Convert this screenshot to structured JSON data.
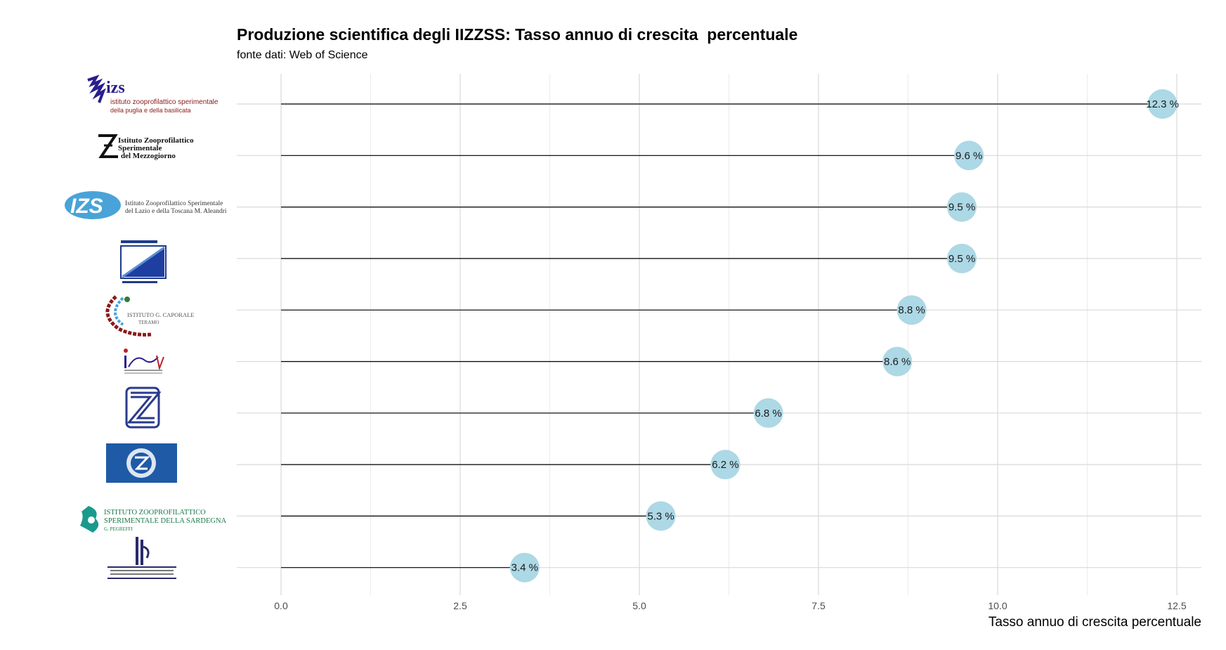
{
  "chart_data": {
    "type": "bar",
    "style": "lollipop-horizontal",
    "title": "Produzione scientifica degli IIZZSS: Tasso annuo di crescita  percentuale",
    "subtitle": "fonte dati: Web of Science",
    "xlabel": "Tasso annuo di crescita  percentuale",
    "ylabel": "",
    "xlim": [
      0,
      12.9
    ],
    "x_ticks": [
      "0.0",
      "2.5",
      "5.0",
      "7.5",
      "10.0",
      "12.5"
    ],
    "x_tick_values": [
      0,
      2.5,
      5,
      7.5,
      10,
      12.5
    ],
    "grid": true,
    "point_color": "#add8e6",
    "line_color": "#000000",
    "categories": [
      "izs-puglia-basilicata-logo",
      "izs-mezzogiorno-logo",
      "izs-lazio-toscana-logo",
      "izs-blue-square-logo",
      "izs-caporale-teramo-logo",
      "izs-ivs-logo",
      "izs-stripes-logo",
      "izs-blue-badge-logo",
      "izs-sardegna-logo",
      "izs-lombardia-emilia-logo"
    ],
    "values": [
      12.3,
      9.6,
      9.5,
      9.5,
      8.8,
      8.6,
      6.8,
      6.2,
      5.3,
      3.4
    ],
    "labels": [
      "12.3 %",
      "9.6 %",
      "9.5 %",
      "9.5 %",
      "8.8 %",
      "8.6 %",
      "6.8 %",
      "6.2 %",
      "5.3 %",
      "3.4 %"
    ]
  },
  "logos": [
    {
      "icon": "izs-puglia-basilicata-logo",
      "text": [
        "izs",
        "istituto zooprofilattico sperimentale",
        "della puglia e della basilicata"
      ]
    },
    {
      "icon": "izs-mezzogiorno-logo",
      "text": [
        "Istituto Zooprofilattico",
        "Sperimentale",
        "del Mezzogiorno"
      ]
    },
    {
      "icon": "izs-lazio-toscana-logo",
      "text": [
        "IZS",
        "Istituto Zooprofilattico Sperimentale",
        "del Lazio e della Toscana M. Aleandri"
      ]
    },
    {
      "icon": "izs-blue-square-logo",
      "text": []
    },
    {
      "icon": "izs-caporale-teramo-logo",
      "text": [
        "ISTITUTO G. CAPORALE",
        "TERAMO"
      ]
    },
    {
      "icon": "izs-ivs-logo",
      "text": []
    },
    {
      "icon": "izs-stripes-logo",
      "text": []
    },
    {
      "icon": "izs-blue-badge-logo",
      "text": []
    },
    {
      "icon": "izs-sardegna-logo",
      "text": [
        "ISTITUTO ZOOPROFILATTICO",
        "SPERIMENTALE DELLA SARDEGNA",
        "G. PEGREFFI"
      ]
    },
    {
      "icon": "izs-lombardia-emilia-logo",
      "text": []
    }
  ]
}
